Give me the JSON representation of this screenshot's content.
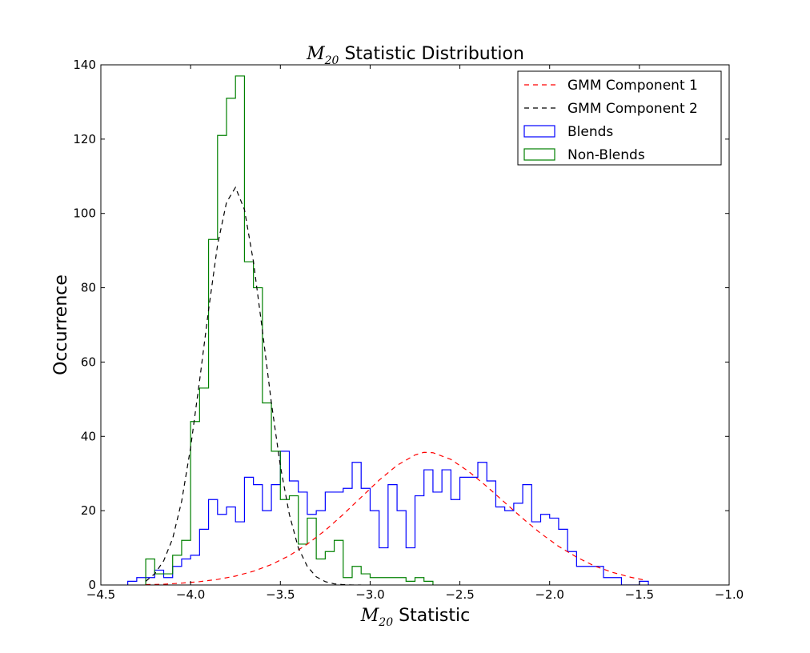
{
  "chart_data": {
    "type": "histogram",
    "title": {
      "symbol": "M",
      "subscript": "20",
      "text": " Statistic Distribution"
    },
    "xlabel": {
      "symbol": "M",
      "subscript": "20",
      "text": " Statistic"
    },
    "ylabel": "Occurrence",
    "xlim": [
      -4.5,
      -1.0
    ],
    "ylim": [
      0,
      140
    ],
    "xticks": [
      -4.5,
      -4.0,
      -3.5,
      -3.0,
      -2.5,
      -2.0,
      -1.5,
      -1.0
    ],
    "xtick_labels": [
      "−4.5",
      "−4.0",
      "−3.5",
      "−3.0",
      "−2.5",
      "−2.0",
      "−1.5",
      "−1.0"
    ],
    "yticks": [
      0,
      20,
      40,
      60,
      80,
      100,
      120,
      140
    ],
    "ytick_labels": [
      "0",
      "20",
      "40",
      "60",
      "80",
      "100",
      "120",
      "140"
    ],
    "grid": false,
    "legend_position": "top-right",
    "colors": {
      "blends": "#0000ff",
      "non_blends": "#008000",
      "gmm1": "#ff0000",
      "gmm2": "#000000"
    },
    "series": [
      {
        "name": "Blends",
        "kind": "step-histogram",
        "edges": [
          -4.35,
          -4.3,
          -4.25,
          -4.2,
          -4.15,
          -4.1,
          -4.05,
          -4.0,
          -3.95,
          -3.9,
          -3.85,
          -3.8,
          -3.75,
          -3.7,
          -3.65,
          -3.6,
          -3.55,
          -3.5,
          -3.45,
          -3.4,
          -3.35,
          -3.3,
          -3.25,
          -3.2,
          -3.15,
          -3.1,
          -3.05,
          -3.0,
          -2.95,
          -2.9,
          -2.85,
          -2.8,
          -2.75,
          -2.7,
          -2.65,
          -2.6,
          -2.55,
          -2.5,
          -2.45,
          -2.4,
          -2.35,
          -2.3,
          -2.25,
          -2.2,
          -2.15,
          -2.1,
          -2.05,
          -2.0,
          -1.95,
          -1.9,
          -1.85,
          -1.8,
          -1.75,
          -1.7,
          -1.65,
          -1.6,
          -1.55,
          -1.5,
          -1.45
        ],
        "counts": [
          1,
          2,
          2,
          4,
          2,
          5,
          7,
          8,
          15,
          23,
          19,
          21,
          17,
          29,
          27,
          20,
          27,
          36,
          28,
          25,
          19,
          20,
          25,
          25,
          26,
          33,
          26,
          20,
          10,
          27,
          20,
          10,
          24,
          31,
          25,
          31,
          23,
          29,
          29,
          33,
          28,
          21,
          20,
          22,
          27,
          17,
          19,
          18,
          15,
          9,
          5,
          5,
          5,
          2,
          2,
          0,
          0,
          1
        ]
      },
      {
        "name": "Non-Blends",
        "kind": "step-histogram",
        "edges": [
          -4.25,
          -4.2,
          -4.15,
          -4.1,
          -4.05,
          -4.0,
          -3.95,
          -3.9,
          -3.85,
          -3.8,
          -3.75,
          -3.7,
          -3.65,
          -3.6,
          -3.55,
          -3.5,
          -3.45,
          -3.4,
          -3.35,
          -3.3,
          -3.25,
          -3.2,
          -3.15,
          -3.1,
          -3.05,
          -3.0,
          -2.95,
          -2.9,
          -2.85,
          -2.8,
          -2.75,
          -2.7,
          -2.65
        ],
        "counts": [
          7,
          3,
          3,
          8,
          12,
          44,
          53,
          93,
          121,
          131,
          137,
          87,
          80,
          49,
          36,
          23,
          24,
          11,
          18,
          7,
          9,
          12,
          2,
          5,
          3,
          2,
          2,
          2,
          2,
          1,
          2,
          1
        ]
      },
      {
        "name": "GMM Component 1",
        "kind": "dashed-curve",
        "x": [
          -4.25,
          -4.15,
          -4.05,
          -3.95,
          -3.85,
          -3.75,
          -3.65,
          -3.55,
          -3.45,
          -3.35,
          -3.25,
          -3.15,
          -3.05,
          -2.95,
          -2.85,
          -2.75,
          -2.7,
          -2.65,
          -2.55,
          -2.45,
          -2.35,
          -2.25,
          -2.15,
          -2.05,
          -1.95,
          -1.85,
          -1.75,
          -1.65,
          -1.55,
          -1.48
        ],
        "y": [
          0.1,
          0.2,
          0.5,
          0.9,
          1.5,
          2.4,
          3.7,
          5.5,
          7.9,
          11.0,
          14.7,
          19.0,
          23.6,
          28.2,
          32.2,
          35.0,
          35.7,
          35.6,
          33.8,
          30.5,
          26.5,
          22.2,
          17.9,
          13.9,
          10.4,
          7.5,
          5.1,
          3.4,
          2.1,
          1.4
        ]
      },
      {
        "name": "GMM Component 2",
        "kind": "dashed-curve",
        "x": [
          -4.25,
          -4.2,
          -4.15,
          -4.1,
          -4.05,
          -4.0,
          -3.95,
          -3.9,
          -3.85,
          -3.8,
          -3.75,
          -3.7,
          -3.65,
          -3.6,
          -3.55,
          -3.5,
          -3.45,
          -3.4,
          -3.35,
          -3.3,
          -3.25,
          -3.2,
          -3.15,
          -3.1,
          -3.05
        ],
        "y": [
          1.0,
          3.0,
          6.5,
          12.5,
          22.5,
          37.0,
          55.0,
          74.0,
          91.5,
          103.0,
          107.0,
          101.0,
          87.0,
          68.5,
          49.0,
          32.0,
          19.0,
          10.0,
          5.0,
          2.2,
          0.9,
          0.3,
          0.1,
          0.0,
          0.0
        ]
      }
    ]
  }
}
